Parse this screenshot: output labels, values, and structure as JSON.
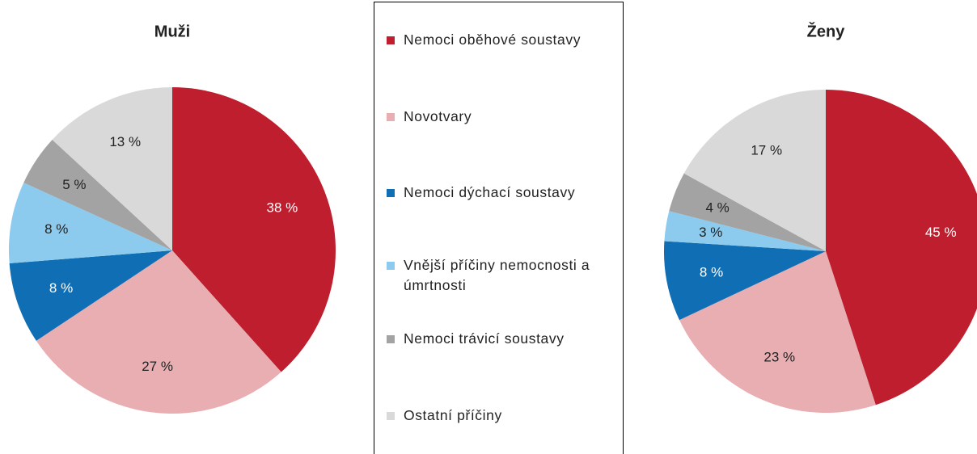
{
  "chart_data": [
    {
      "type": "pie",
      "title": "Muži",
      "categories": [
        "Nemoci oběhové soustavy",
        "Novotvary",
        "Nemoci dýchací soustavy",
        "Vnější příčiny nemocnosti a úmrtnosti",
        "Nemoci trávicí soustavy",
        "Ostatní příčiny"
      ],
      "values": [
        38,
        27,
        8,
        8,
        5,
        13
      ],
      "value_labels": [
        "38 %",
        "27 %",
        "8 %",
        "8 %",
        "5 %",
        "13 %"
      ],
      "colors": [
        "#be1e2d",
        "#e8aeb2",
        "#106eb4",
        "#8ccbee",
        "#a3a3a3",
        "#d9d9d9"
      ]
    },
    {
      "type": "pie",
      "title": "Ženy",
      "values": [
        45,
        23,
        8,
        3,
        4,
        17
      ],
      "value_labels": [
        "45 %",
        "23 %",
        "8 %",
        "3 %",
        "4 %",
        "17 %"
      ],
      "colors": [
        "#be1e2d",
        "#e8aeb2",
        "#106eb4",
        "#8ccbee",
        "#a3a3a3",
        "#d9d9d9"
      ]
    }
  ]
}
